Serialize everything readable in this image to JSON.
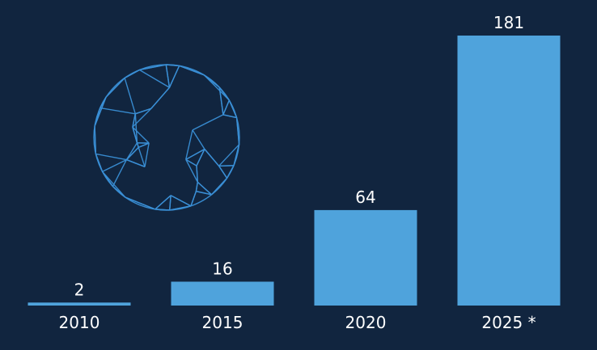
{
  "colors": {
    "background": "#11253f",
    "bar": "#4fa3dc",
    "text": "#ffffff",
    "globe": "#3a8fd6"
  },
  "decoration": {
    "icon": "wireframe-globe-icon"
  },
  "chart_data": {
    "type": "bar",
    "categories": [
      "2010",
      "2015",
      "2020",
      "2025 *"
    ],
    "values": [
      2,
      16,
      64,
      181
    ],
    "data_labels": [
      "2",
      "16",
      "64",
      "181"
    ],
    "title": "",
    "xlabel": "",
    "ylabel": "",
    "ylim": [
      0,
      181
    ],
    "grid": false,
    "legend": "none"
  }
}
